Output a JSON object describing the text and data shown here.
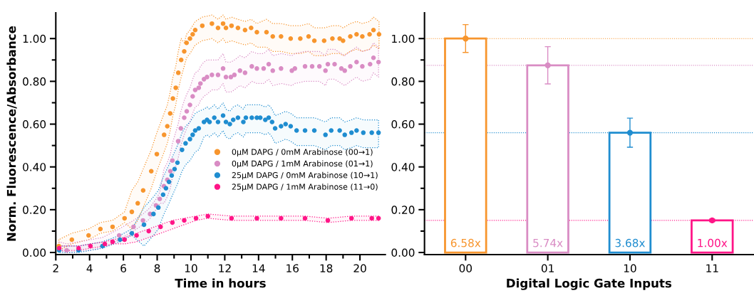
{
  "chart_data": [
    {
      "type": "scatter",
      "xlabel": "Time in hours",
      "ylabel": "Norm. Fluorescence/Absorbance",
      "xlim": [
        2,
        21.5
      ],
      "xticks": [
        2,
        4,
        6,
        8,
        10,
        12,
        14,
        16,
        18,
        20
      ],
      "ylim": [
        -0.01,
        1.12
      ],
      "yticks": [
        {
          "value": 0,
          "label": "0.00"
        },
        {
          "value": 0.2,
          "label": "0.20"
        },
        {
          "value": 0.4,
          "label": "0.40"
        },
        {
          "value": 0.6,
          "label": "0.60"
        },
        {
          "value": 0.8,
          "label": "0.80"
        },
        {
          "value": 1.0,
          "label": "1.00"
        }
      ],
      "legend": "right",
      "marker": "circle",
      "series": [
        {
          "name": "0μM DAPG / 0mM Arabinose (00→1)",
          "color": "#f7952d",
          "x": [
            2.18,
            2.95,
            3.94,
            4.64,
            5.36,
            6.07,
            6.5,
            6.85,
            7.17,
            7.65,
            7.98,
            8.41,
            8.6,
            8.77,
            8.93,
            9.1,
            9.25,
            9.42,
            9.6,
            9.74,
            9.94,
            10.1,
            10.25,
            10.67,
            11.24,
            11.6,
            11.9,
            12.07,
            12.4,
            12.78,
            13.2,
            13.56,
            13.9,
            14.47,
            14.84,
            15.33,
            15.9,
            16.47,
            16.96,
            17.3,
            17.88,
            18.37,
            18.8,
            19.0,
            19.43,
            19.8,
            20.14,
            20.57,
            20.8,
            21.13
          ],
          "values": [
            0.03,
            0.06,
            0.08,
            0.11,
            0.12,
            0.16,
            0.19,
            0.23,
            0.29,
            0.38,
            0.46,
            0.55,
            0.59,
            0.65,
            0.72,
            0.77,
            0.84,
            0.9,
            0.94,
            0.98,
            1.0,
            1.02,
            1.04,
            1.06,
            1.07,
            1.05,
            1.07,
            1.05,
            1.06,
            1.05,
            1.04,
            1.05,
            1.03,
            1.03,
            1.01,
            1.01,
            1.0,
            1.0,
            1.01,
            0.99,
            0.99,
            1.0,
            1.0,
            0.99,
            1.01,
            1.02,
            1.01,
            1.02,
            1.04,
            1.02
          ],
          "upper": [
            0.06,
            0.09,
            0.11,
            0.14,
            0.15,
            0.19,
            0.29,
            0.33,
            0.39,
            0.48,
            0.56,
            0.65,
            0.69,
            0.75,
            0.82,
            0.87,
            0.94,
            1.0,
            0.98,
            1.02,
            1.04,
            1.06,
            1.08,
            1.1,
            1.11,
            1.09,
            1.11,
            1.09,
            1.1,
            1.09,
            1.08,
            1.09,
            1.07,
            1.09,
            1.07,
            1.07,
            1.06,
            1.06,
            1.07,
            1.05,
            1.05,
            1.06,
            1.06,
            1.05,
            1.07,
            1.08,
            1.07,
            1.08,
            1.1,
            1.08
          ],
          "lower": [
            0.01,
            0.04,
            0.06,
            0.09,
            0.1,
            0.14,
            0.11,
            0.15,
            0.21,
            0.3,
            0.38,
            0.47,
            0.51,
            0.57,
            0.64,
            0.69,
            0.76,
            0.82,
            0.87,
            0.91,
            0.93,
            0.95,
            0.97,
            0.99,
            1.0,
            0.98,
            1.0,
            0.98,
            0.99,
            0.98,
            0.97,
            0.98,
            0.96,
            0.96,
            0.94,
            0.94,
            0.93,
            0.93,
            0.94,
            0.92,
            0.92,
            0.93,
            0.93,
            0.92,
            0.94,
            0.95,
            0.94,
            0.95,
            0.97,
            0.95
          ]
        },
        {
          "name": "0μM DAPG / 1mM Arabinose (01→1)",
          "color": "#d98cc4",
          "x": [
            2.2,
            2.65,
            4.05,
            4.76,
            5.75,
            6.6,
            7.16,
            7.58,
            7.93,
            8.15,
            8.4,
            8.6,
            8.78,
            8.9,
            9.24,
            9.4,
            9.6,
            9.75,
            9.94,
            10.1,
            10.25,
            10.46,
            10.56,
            10.77,
            10.95,
            11.24,
            11.6,
            11.9,
            12.07,
            12.36,
            12.57,
            12.9,
            13.2,
            13.6,
            13.9,
            14.3,
            14.6,
            14.84,
            15.33,
            15.97,
            16.15,
            16.75,
            17.17,
            17.6,
            17.96,
            18.1,
            18.5,
            18.9,
            19.1,
            19.43,
            19.8,
            20.14,
            20.6,
            20.8,
            21.1
          ],
          "values": [
            null,
            0.01,
            null,
            null,
            0.08,
            0.12,
            0.15,
            0.18,
            0.22,
            0.25,
            0.31,
            0.34,
            0.38,
            0.43,
            0.52,
            0.58,
            0.63,
            0.66,
            0.69,
            0.73,
            0.76,
            0.77,
            0.79,
            0.81,
            0.82,
            0.83,
            0.83,
            0.86,
            0.82,
            0.82,
            0.83,
            0.85,
            0.84,
            0.87,
            0.86,
            0.86,
            0.88,
            0.85,
            0.86,
            0.85,
            0.86,
            0.87,
            0.87,
            0.87,
            0.85,
            0.88,
            0.88,
            0.86,
            0.85,
            0.87,
            0.89,
            0.87,
            0.88,
            0.91,
            0.89
          ],
          "upper": [
            0.05,
            0.04,
            0.06,
            0.07,
            0.11,
            0.15,
            0.18,
            0.21,
            0.25,
            0.28,
            0.39,
            0.42,
            0.46,
            0.51,
            0.6,
            0.66,
            0.71,
            0.74,
            0.77,
            0.81,
            0.84,
            0.85,
            0.87,
            0.89,
            0.9,
            0.9,
            0.9,
            0.93,
            0.89,
            0.89,
            0.9,
            0.92,
            0.91,
            0.94,
            0.93,
            0.93,
            0.95,
            0.92,
            0.93,
            0.92,
            0.93,
            0.94,
            0.94,
            0.94,
            0.92,
            0.95,
            0.95,
            0.93,
            0.92,
            0.94,
            0.96,
            0.94,
            0.95,
            0.98,
            0.96
          ],
          "lower": [
            0.01,
            0.0,
            0.01,
            0.02,
            0.06,
            0.1,
            0.13,
            0.16,
            0.2,
            0.23,
            0.23,
            0.26,
            0.3,
            0.35,
            0.44,
            0.5,
            0.55,
            0.58,
            0.61,
            0.65,
            0.68,
            0.69,
            0.71,
            0.73,
            0.74,
            0.76,
            0.76,
            0.79,
            0.75,
            0.75,
            0.76,
            0.78,
            0.77,
            0.8,
            0.79,
            0.79,
            0.81,
            0.78,
            0.79,
            0.78,
            0.79,
            0.8,
            0.8,
            0.8,
            0.78,
            0.81,
            0.81,
            0.79,
            0.78,
            0.8,
            0.82,
            0.8,
            0.81,
            0.84,
            0.82
          ]
        },
        {
          "name": "25μM DAPG / 0mM Arabinose (10→1)",
          "color": "#1f8dd0",
          "x": [
            2.2,
            3.35,
            4.76,
            5.8,
            6.5,
            7.22,
            7.78,
            8.07,
            8.35,
            8.52,
            8.7,
            8.86,
            9.03,
            9.2,
            9.47,
            9.68,
            9.94,
            10.1,
            10.25,
            10.46,
            10.77,
            10.95,
            11.1,
            11.38,
            11.6,
            11.9,
            12.07,
            12.3,
            12.5,
            12.78,
            13.1,
            13.25,
            13.6,
            13.9,
            14.1,
            14.4,
            14.6,
            14.8,
            14.98,
            15.33,
            15.6,
            15.9,
            16.25,
            16.75,
            17.3,
            17.96,
            18.3,
            18.8,
            19.1,
            19.5,
            19.8,
            20.2,
            20.7,
            21.1
          ],
          "values": [
            0.01,
            0.01,
            0.03,
            0.06,
            0.09,
            0.13,
            0.18,
            0.21,
            0.27,
            0.3,
            0.33,
            0.36,
            0.39,
            0.42,
            0.48,
            0.51,
            0.53,
            0.55,
            0.57,
            0.58,
            0.61,
            0.62,
            0.61,
            0.63,
            0.61,
            0.64,
            0.61,
            0.6,
            0.62,
            0.63,
            0.61,
            0.63,
            0.63,
            0.63,
            0.63,
            0.62,
            0.63,
            0.61,
            0.58,
            0.59,
            0.6,
            0.59,
            0.57,
            0.57,
            0.57,
            0.55,
            0.57,
            0.57,
            0.55,
            0.56,
            0.57,
            0.56,
            0.56,
            0.56
          ],
          "upper": [
            0.03,
            0.03,
            0.05,
            0.08,
            0.11,
            0.21,
            0.26,
            0.29,
            0.35,
            0.38,
            0.41,
            0.44,
            0.47,
            0.5,
            0.56,
            0.59,
            0.61,
            0.63,
            0.65,
            0.66,
            0.67,
            0.68,
            0.67,
            0.69,
            0.67,
            0.7,
            0.67,
            0.66,
            0.68,
            0.69,
            0.67,
            0.69,
            0.69,
            0.69,
            0.69,
            0.68,
            0.69,
            0.67,
            0.64,
            0.65,
            0.66,
            0.65,
            0.63,
            0.63,
            0.63,
            0.61,
            0.63,
            0.63,
            0.61,
            0.62,
            0.63,
            0.62,
            0.62,
            0.62
          ],
          "lower": [
            0.0,
            0.0,
            0.02,
            0.05,
            0.08,
            0.03,
            0.08,
            0.11,
            0.17,
            0.2,
            0.23,
            0.26,
            0.29,
            0.32,
            0.38,
            0.41,
            0.43,
            0.45,
            0.47,
            0.48,
            0.54,
            0.55,
            0.54,
            0.56,
            0.54,
            0.57,
            0.54,
            0.53,
            0.55,
            0.56,
            0.54,
            0.56,
            0.56,
            0.56,
            0.56,
            0.55,
            0.56,
            0.54,
            0.51,
            0.52,
            0.53,
            0.52,
            0.5,
            0.5,
            0.5,
            0.48,
            0.5,
            0.5,
            0.48,
            0.49,
            0.5,
            0.49,
            0.49,
            0.49
          ]
        },
        {
          "name": "25μM DAPG / 1mM Arabinose (11→0)",
          "color": "#ff1587",
          "x": [
            2.2,
            3.35,
            4.05,
            4.9,
            5.36,
            6.07,
            6.78,
            7.5,
            8.2,
            8.9,
            9.6,
            10.3,
            11.0,
            12.4,
            13.9,
            15.33,
            16.75,
            18.1,
            19.5,
            20.7,
            21.1
          ],
          "values": [
            0.02,
            0.02,
            0.03,
            0.04,
            0.05,
            0.06,
            0.08,
            0.1,
            0.12,
            0.14,
            0.15,
            0.16,
            0.17,
            0.16,
            0.16,
            0.16,
            0.16,
            0.15,
            0.16,
            0.16,
            0.16
          ],
          "upper": [
            0.03,
            0.03,
            0.04,
            0.05,
            0.06,
            0.07,
            0.09,
            0.11,
            0.13,
            0.15,
            0.16,
            0.17,
            0.18,
            0.17,
            0.17,
            0.17,
            0.17,
            0.16,
            0.17,
            0.17,
            0.17
          ],
          "lower": [
            0.01,
            0.01,
            0.02,
            0.03,
            0.04,
            0.04,
            0.05,
            0.07,
            0.09,
            0.11,
            0.13,
            0.15,
            0.16,
            0.15,
            0.15,
            0.15,
            0.15,
            0.14,
            0.15,
            0.15,
            0.15
          ]
        }
      ]
    },
    {
      "type": "bar",
      "xlabel": "Digital Logic Gate Inputs",
      "categories": [
        "00",
        "01",
        "10",
        "11"
      ],
      "marker": "circle",
      "series": [
        {
          "type": "bar",
          "values": [
            1.0,
            0.875,
            0.56,
            0.15
          ],
          "errors": [
            0.065,
            0.087,
            0.068,
            0.006
          ],
          "colors": [
            "#f7952d",
            "#d98cc4",
            "#1f8dd0",
            "#ff1587"
          ]
        },
        {
          "type": "scatter",
          "x": [
            "00",
            "01",
            "10",
            "11"
          ],
          "values": [
            1.0,
            0.875,
            0.56,
            0.15
          ],
          "colors": [
            "#f7952d",
            "#d98cc4",
            "#1f8dd0",
            "#ff1587"
          ]
        }
      ],
      "annotations": [
        "6.58x",
        "5.74x",
        "3.68x",
        "1.00x"
      ],
      "ylim": [
        -0.01,
        1.12
      ],
      "yticks": [
        {
          "value": 0,
          "label": "0.00"
        },
        {
          "value": 0.2,
          "label": "0.20"
        },
        {
          "value": 0.4,
          "label": "0.40"
        },
        {
          "value": 0.6,
          "label": "0.60"
        },
        {
          "value": 0.8,
          "label": "0.80"
        },
        {
          "value": 1.0,
          "label": "1.00"
        }
      ],
      "ref_lines": [
        {
          "axis": "y",
          "value": 1.0,
          "color": "#f7952d",
          "line_style": "dotted"
        },
        {
          "axis": "y",
          "value": 0.875,
          "color": "#d98cc4",
          "line_style": "dotted"
        },
        {
          "axis": "y",
          "value": 0.56,
          "color": "#1f8dd0",
          "line_style": "dotted"
        },
        {
          "axis": "y",
          "value": 0.15,
          "color": "#ff1587",
          "line_style": "dotted"
        }
      ]
    }
  ]
}
